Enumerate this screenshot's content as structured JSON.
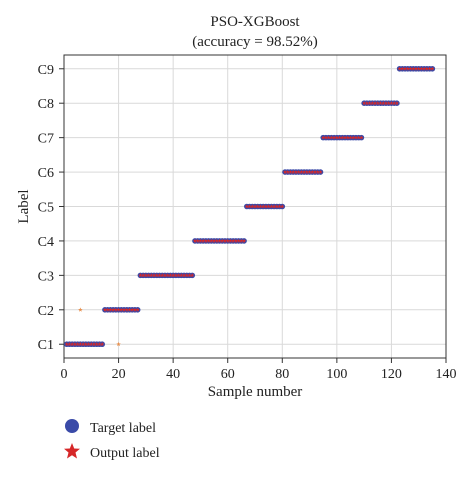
{
  "chart_data": {
    "type": "scatter",
    "title": "PSO-XGBoost",
    "subtitle": "(accuracy = 98.52%)",
    "xlabel": "Sample number",
    "ylabel": "Label",
    "xlim": [
      0,
      140
    ],
    "ylim": [
      0.6,
      9.4
    ],
    "x_ticks": [
      0,
      20,
      40,
      60,
      80,
      100,
      120,
      140
    ],
    "categories": [
      "C1",
      "C2",
      "C3",
      "C4",
      "C5",
      "C6",
      "C7",
      "C8",
      "C9"
    ],
    "grid": true,
    "legend_placement": "bottom-left",
    "series": [
      {
        "name": "Target label",
        "marker": "circle",
        "color": "#3a4aa8",
        "segments": [
          {
            "class": "C1",
            "x_start": 1,
            "x_end": 14
          },
          {
            "class": "C2",
            "x_start": 15,
            "x_end": 27
          },
          {
            "class": "C3",
            "x_start": 28,
            "x_end": 47
          },
          {
            "class": "C4",
            "x_start": 48,
            "x_end": 66
          },
          {
            "class": "C5",
            "x_start": 67,
            "x_end": 80
          },
          {
            "class": "C6",
            "x_start": 81,
            "x_end": 94
          },
          {
            "class": "C7",
            "x_start": 95,
            "x_end": 109
          },
          {
            "class": "C8",
            "x_start": 110,
            "x_end": 122
          },
          {
            "class": "C9",
            "x_start": 123,
            "x_end": 135
          }
        ]
      },
      {
        "name": "Output label",
        "marker": "star",
        "color": "#d62728",
        "segments": [
          {
            "class": "C1",
            "x_start": 1,
            "x_end": 14
          },
          {
            "class": "C2",
            "x_start": 15,
            "x_end": 27
          },
          {
            "class": "C3",
            "x_start": 28,
            "x_end": 47
          },
          {
            "class": "C4",
            "x_start": 48,
            "x_end": 66
          },
          {
            "class": "C5",
            "x_start": 67,
            "x_end": 80
          },
          {
            "class": "C6",
            "x_start": 81,
            "x_end": 94
          },
          {
            "class": "C7",
            "x_start": 95,
            "x_end": 109
          },
          {
            "class": "C8",
            "x_start": 110,
            "x_end": 122
          },
          {
            "class": "C9",
            "x_start": 123,
            "x_end": 135
          }
        ],
        "misclassified": [
          {
            "x": 6,
            "class": "C2"
          },
          {
            "x": 20,
            "class": "C1"
          }
        ]
      }
    ]
  },
  "legend": {
    "target_label": "Target label",
    "output_label": "Output label"
  }
}
